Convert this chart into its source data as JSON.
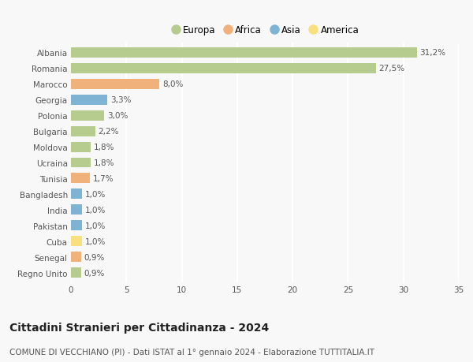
{
  "categories": [
    "Albania",
    "Romania",
    "Marocco",
    "Georgia",
    "Polonia",
    "Bulgaria",
    "Moldova",
    "Ucraina",
    "Tunisia",
    "Bangladesh",
    "India",
    "Pakistan",
    "Cuba",
    "Senegal",
    "Regno Unito"
  ],
  "values": [
    31.2,
    27.5,
    8.0,
    3.3,
    3.0,
    2.2,
    1.8,
    1.8,
    1.7,
    1.0,
    1.0,
    1.0,
    1.0,
    0.9,
    0.9
  ],
  "labels": [
    "31,2%",
    "27,5%",
    "8,0%",
    "3,3%",
    "3,0%",
    "2,2%",
    "1,8%",
    "1,8%",
    "1,7%",
    "1,0%",
    "1,0%",
    "1,0%",
    "1,0%",
    "0,9%",
    "0,9%"
  ],
  "continent": [
    "Europa",
    "Europa",
    "Africa",
    "Asia",
    "Europa",
    "Europa",
    "Europa",
    "Europa",
    "Africa",
    "Asia",
    "Asia",
    "Asia",
    "America",
    "Africa",
    "Europa"
  ],
  "colors": {
    "Europa": "#b5cc8e",
    "Africa": "#f0b27a",
    "Asia": "#7fb3d3",
    "America": "#f9e07f"
  },
  "xlim": [
    0,
    35
  ],
  "xticks": [
    0,
    5,
    10,
    15,
    20,
    25,
    30,
    35
  ],
  "title": "Cittadini Stranieri per Cittadinanza - 2024",
  "subtitle": "COMUNE DI VECCHIANO (PI) - Dati ISTAT al 1° gennaio 2024 - Elaborazione TUTTITALIA.IT",
  "background_color": "#f8f8f8",
  "grid_color": "#ffffff",
  "bar_height": 0.65,
  "label_fontsize": 7.5,
  "title_fontsize": 10,
  "subtitle_fontsize": 7.5,
  "tick_fontsize": 7.5,
  "legend_fontsize": 8.5
}
